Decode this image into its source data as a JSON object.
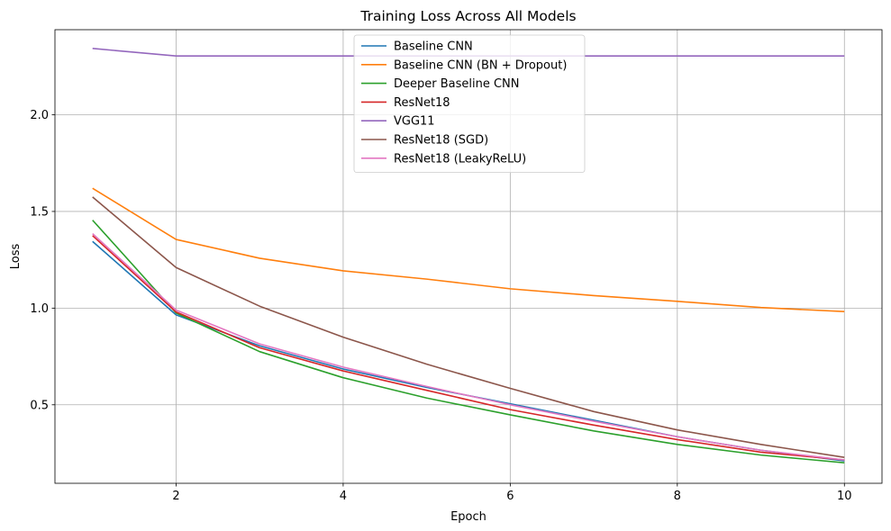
{
  "chart_data": {
    "type": "line",
    "title": "Training Loss Across All Models",
    "xlabel": "Epoch",
    "ylabel": "Loss",
    "xlim": [
      0.55,
      10.45
    ],
    "ylim": [
      0.094,
      2.44
    ],
    "xticks": [
      2,
      4,
      6,
      8,
      10
    ],
    "yticks": [
      0.5,
      1.0,
      1.5,
      2.0
    ],
    "ytick_labels": [
      "0.5",
      "1.0",
      "1.5",
      "2.0"
    ],
    "grid": true,
    "legend_position": "top-center",
    "x": [
      1,
      2,
      3,
      4,
      5,
      6,
      7,
      8,
      9,
      10
    ],
    "series": [
      {
        "name": "Baseline CNN",
        "color": "#1f77b4",
        "values": [
          1.345,
          0.965,
          0.805,
          0.685,
          0.59,
          0.505,
          0.42,
          0.335,
          0.265,
          0.21
        ]
      },
      {
        "name": "Baseline CNN (BN + Dropout)",
        "color": "#ff7f0e",
        "values": [
          1.62,
          1.355,
          1.258,
          1.193,
          1.15,
          1.1,
          1.065,
          1.035,
          1.003,
          0.982
        ]
      },
      {
        "name": "Deeper Baseline CNN",
        "color": "#2ca02c",
        "values": [
          1.455,
          0.975,
          0.775,
          0.64,
          0.535,
          0.448,
          0.365,
          0.295,
          0.24,
          0.2
        ]
      },
      {
        "name": "ResNet18",
        "color": "#d62728",
        "values": [
          1.375,
          0.98,
          0.795,
          0.675,
          0.575,
          0.475,
          0.395,
          0.32,
          0.255,
          0.215
        ]
      },
      {
        "name": "VGG11",
        "color": "#9467bd",
        "values": [
          2.343,
          2.304,
          2.304,
          2.304,
          2.304,
          2.304,
          2.304,
          2.304,
          2.304,
          2.304
        ]
      },
      {
        "name": "ResNet18 (SGD)",
        "color": "#8c564b",
        "values": [
          1.575,
          1.21,
          1.01,
          0.85,
          0.71,
          0.585,
          0.465,
          0.37,
          0.295,
          0.228
        ]
      },
      {
        "name": "ResNet18 (LeakyReLU)",
        "color": "#e377c2",
        "values": [
          1.385,
          0.99,
          0.815,
          0.695,
          0.595,
          0.5,
          0.415,
          0.335,
          0.265,
          0.215
        ]
      }
    ]
  }
}
